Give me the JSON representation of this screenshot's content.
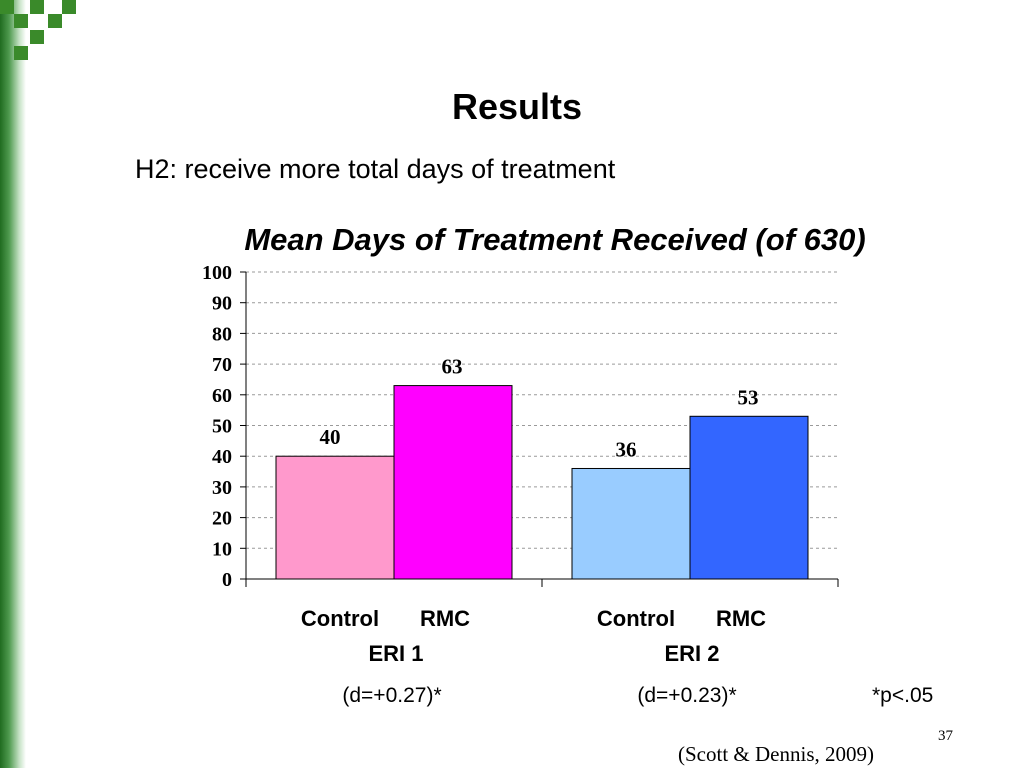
{
  "slide": {
    "title": "Results",
    "subtitle": "H2: receive more total days of treatment",
    "effect_sizes": [
      "(d=+0.27)*",
      "(d=+0.23)*"
    ],
    "significance_note": "*p<.05",
    "page_number": "37",
    "citation": "(Scott & Dennis, 2009)"
  },
  "chart_data": {
    "type": "bar",
    "title": "Mean Days of Treatment Received (of 630)",
    "xlabel": "",
    "ylabel": "",
    "ylim": [
      0,
      100
    ],
    "yticks": [
      0,
      10,
      20,
      30,
      40,
      50,
      60,
      70,
      80,
      90,
      100
    ],
    "grid": true,
    "groups": [
      {
        "label": "ERI 1",
        "bars": [
          {
            "label": "Control",
            "value": 40,
            "color": "#ff99cc"
          },
          {
            "label": "RMC",
            "value": 63,
            "color": "#ff00ff"
          }
        ]
      },
      {
        "label": "ERI 2",
        "bars": [
          {
            "label": "Control",
            "value": 36,
            "color": "#99ccff"
          },
          {
            "label": "RMC",
            "value": 53,
            "color": "#3366ff"
          }
        ]
      }
    ]
  }
}
